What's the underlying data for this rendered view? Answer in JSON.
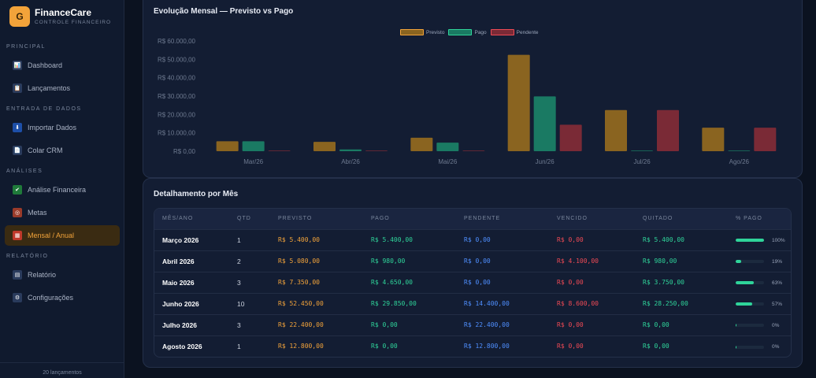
{
  "app": {
    "logo_letter": "G",
    "name": "FinanceCare",
    "subtitle": "CONTROLE FINANCEIRO"
  },
  "sidebar": {
    "sections": [
      {
        "label": "PRINCIPAL",
        "items": [
          {
            "label": "Dashboard",
            "icon": "chart-icon"
          },
          {
            "label": "Lançamentos",
            "icon": "clipboard-icon"
          }
        ]
      },
      {
        "label": "ENTRADA DE DADOS",
        "items": [
          {
            "label": "Importar Dados",
            "icon": "import-icon"
          },
          {
            "label": "Colar CRM",
            "icon": "document-icon"
          }
        ]
      },
      {
        "label": "ANÁLISES",
        "items": [
          {
            "label": "Análise Financeira",
            "icon": "trend-icon"
          },
          {
            "label": "Metas",
            "icon": "target-icon"
          },
          {
            "label": "Mensal / Anual",
            "icon": "calendar-icon",
            "active": true
          }
        ]
      },
      {
        "label": "RELATÓRIO",
        "items": [
          {
            "label": "Relatório",
            "icon": "report-icon"
          },
          {
            "label": "Configurações",
            "icon": "gear-icon"
          }
        ]
      }
    ],
    "footer": "20 lançamentos"
  },
  "chart_card": {
    "title": "Evolução Mensal — Previsto vs Pago"
  },
  "chart_data": {
    "type": "bar",
    "categories": [
      "Mar/26",
      "Abr/26",
      "Mai/26",
      "Jun/26",
      "Jul/26",
      "Ago/26"
    ],
    "series": [
      {
        "name": "Previsto",
        "color": "#8a6420",
        "values": [
          5400,
          5080,
          7350,
          52450,
          22400,
          12800
        ]
      },
      {
        "name": "Pago",
        "color": "#1a7a63",
        "values": [
          5400,
          980,
          4650,
          29850,
          0,
          0
        ]
      },
      {
        "name": "Pendente",
        "color": "#7a2a36",
        "values": [
          0,
          0,
          0,
          14400,
          22400,
          12800
        ]
      }
    ],
    "yticks": [
      "R$ 0,00",
      "R$ 10.000,00",
      "R$ 20.000,00",
      "R$ 30.000,00",
      "R$ 40.000,00",
      "R$ 50.000,00",
      "R$ 60.000,00"
    ],
    "ylim": [
      0,
      60000
    ],
    "legend": "top-center"
  },
  "table_card": {
    "title": "Detalhamento por Mês",
    "headers": [
      "MÊS/ANO",
      "QTD",
      "PREVISTO",
      "PAGO",
      "PENDENTE",
      "VENCIDO",
      "QUITADO",
      "% PAGO"
    ],
    "rows": [
      {
        "mes": "Março 2026",
        "qtd": "1",
        "previsto": "R$ 5.400,00",
        "pago": "R$ 5.400,00",
        "pendente": "R$ 0,00",
        "vencido": "R$ 0,00",
        "quitado": "R$ 5.400,00",
        "pct": "100%",
        "pct_value": 100
      },
      {
        "mes": "Abril 2026",
        "qtd": "2",
        "previsto": "R$ 5.080,00",
        "pago": "R$ 980,00",
        "pendente": "R$ 0,00",
        "vencido": "R$ 4.100,00",
        "quitado": "R$ 980,00",
        "pct": "19%",
        "pct_value": 19
      },
      {
        "mes": "Maio 2026",
        "qtd": "3",
        "previsto": "R$ 7.350,00",
        "pago": "R$ 4.650,00",
        "pendente": "R$ 0,00",
        "vencido": "R$ 0,00",
        "quitado": "R$ 3.750,00",
        "pct": "63%",
        "pct_value": 63
      },
      {
        "mes": "Junho 2026",
        "qtd": "10",
        "previsto": "R$ 52.450,00",
        "pago": "R$ 29.850,00",
        "pendente": "R$ 14.400,00",
        "vencido": "R$ 8.600,00",
        "quitado": "R$ 28.250,00",
        "pct": "57%",
        "pct_value": 57
      },
      {
        "mes": "Julho 2026",
        "qtd": "3",
        "previsto": "R$ 22.400,00",
        "pago": "R$ 0,00",
        "pendente": "R$ 22.400,00",
        "vencido": "R$ 0,00",
        "quitado": "R$ 0,00",
        "pct": "0%",
        "pct_value": 0
      },
      {
        "mes": "Agosto 2026",
        "qtd": "1",
        "previsto": "R$ 12.800,00",
        "pago": "R$ 0,00",
        "pendente": "R$ 12.800,00",
        "vencido": "R$ 0,00",
        "quitado": "R$ 0,00",
        "pct": "0%",
        "pct_value": 0
      }
    ]
  }
}
